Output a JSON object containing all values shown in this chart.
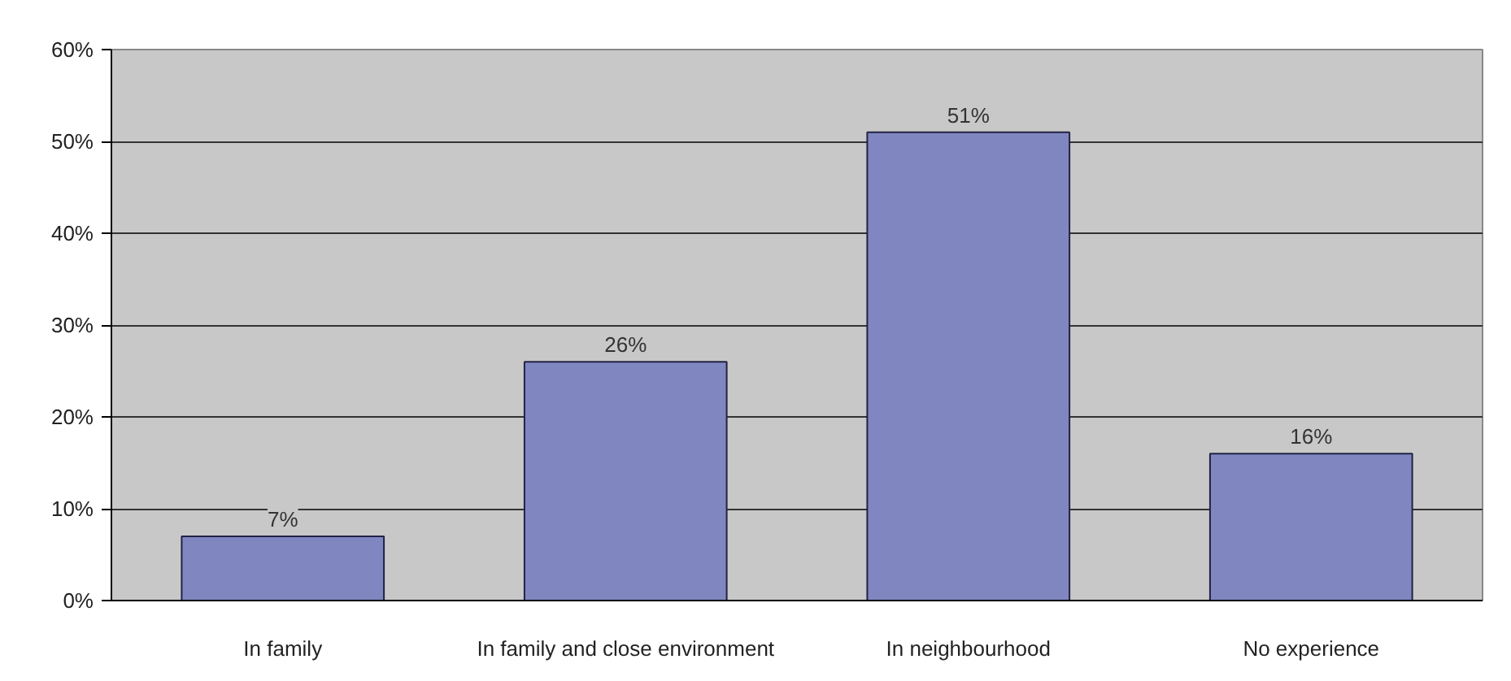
{
  "chart_data": {
    "type": "bar",
    "categories": [
      "In family",
      "In family and close environment",
      "In neighbourhood",
      "No experience"
    ],
    "values": [
      7,
      26,
      51,
      16
    ],
    "color": "#8087c0",
    "value_labels": [
      "7%",
      "26%",
      "51%",
      "16%"
    ],
    "ylim": [
      0,
      60
    ],
    "yticks": [
      {
        "value": 0,
        "label": "0%"
      },
      {
        "value": 10,
        "label": "10%"
      },
      {
        "value": 20,
        "label": "20%"
      },
      {
        "value": 30,
        "label": "30%"
      },
      {
        "value": 40,
        "label": "40%"
      },
      {
        "value": 50,
        "label": "50%"
      },
      {
        "value": 60,
        "label": "60%"
      }
    ],
    "grid": "y"
  }
}
